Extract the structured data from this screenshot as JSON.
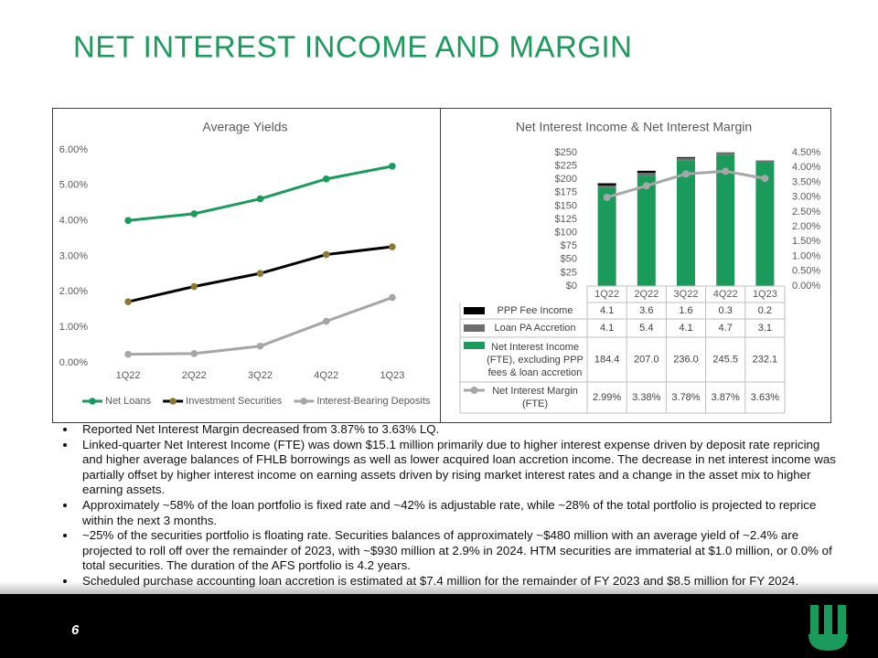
{
  "title": "NET INTEREST INCOME AND MARGIN",
  "chart_data": [
    {
      "type": "line",
      "title": "Average Yields",
      "categories": [
        "1Q22",
        "2Q22",
        "3Q22",
        "4Q22",
        "1Q23"
      ],
      "series": [
        {
          "name": "Net Loans",
          "color": "#1a9b5b",
          "values": [
            4.01,
            4.2,
            4.62,
            5.18,
            5.54
          ]
        },
        {
          "name": "Investment Securities",
          "color": "#000000",
          "marker_color": "#8c7a32",
          "values": [
            1.72,
            2.15,
            2.52,
            3.05,
            3.27
          ]
        },
        {
          "name": "Interest-Bearing Deposits",
          "color": "#a6a6a6",
          "values": [
            0.24,
            0.26,
            0.47,
            1.17,
            1.84
          ]
        }
      ],
      "ylim": [
        0,
        6
      ],
      "yticks": [
        {
          "value": 0,
          "label": "0.00%"
        },
        {
          "value": 1,
          "label": "1.00%"
        },
        {
          "value": 2,
          "label": "2.00%"
        },
        {
          "value": 3,
          "label": "3.00%"
        },
        {
          "value": 4,
          "label": "4.00%"
        },
        {
          "value": 5,
          "label": "5.00%"
        },
        {
          "value": 6,
          "label": "6.00%"
        }
      ],
      "legend": "bottom"
    },
    {
      "type": "bar",
      "title": "Net Interest Income & Net Interest Margin",
      "stacked": true,
      "categories": [
        "1Q22",
        "2Q22",
        "3Q22",
        "4Q22",
        "1Q23"
      ],
      "series": [
        {
          "name": "PPP Fee Income",
          "color": "#000000",
          "values": [
            4.1,
            3.6,
            1.6,
            0.3,
            0.2
          ]
        },
        {
          "name": "Loan PA Accretion",
          "color": "#6d6d6d",
          "values": [
            4.1,
            5.4,
            4.1,
            4.7,
            3.1
          ]
        },
        {
          "name": "Net Interest Income (FTE), excluding PPP fees & loan accretion",
          "color": "#1a9b5b",
          "values": [
            184.4,
            207.0,
            236.0,
            245.5,
            232.1
          ],
          "value_labels": [
            "184.4",
            "207.0",
            "236.0",
            "245.5",
            "232.1"
          ]
        },
        {
          "name": "Net Interest Margin (FTE)",
          "type": "line",
          "axis": "y2",
          "color": "#a6a6a6",
          "values": [
            2.99,
            3.38,
            3.78,
            3.87,
            3.63
          ],
          "value_labels": [
            "2.99%",
            "3.38%",
            "3.78%",
            "3.87%",
            "3.63%"
          ]
        }
      ],
      "ylim": [
        0,
        250
      ],
      "yticks": [
        {
          "value": 0,
          "label": "$0"
        },
        {
          "value": 25,
          "label": "$25"
        },
        {
          "value": 50,
          "label": "$50"
        },
        {
          "value": 75,
          "label": "$75"
        },
        {
          "value": 100,
          "label": "$100"
        },
        {
          "value": 125,
          "label": "$125"
        },
        {
          "value": 150,
          "label": "$150"
        },
        {
          "value": 175,
          "label": "$175"
        },
        {
          "value": 200,
          "label": "$200"
        },
        {
          "value": 225,
          "label": "$225"
        },
        {
          "value": 250,
          "label": "$250"
        }
      ],
      "y2lim": [
        0,
        4.5
      ],
      "y2ticks": [
        {
          "value": 0,
          "label": "0.00%"
        },
        {
          "value": 0.5,
          "label": "0.50%"
        },
        {
          "value": 1,
          "label": "1.00%"
        },
        {
          "value": 1.5,
          "label": "1.50%"
        },
        {
          "value": 2,
          "label": "2.00%"
        },
        {
          "value": 2.5,
          "label": "2.50%"
        },
        {
          "value": 3,
          "label": "3.00%"
        },
        {
          "value": 3.5,
          "label": "3.50%"
        },
        {
          "value": 4,
          "label": "4.00%"
        },
        {
          "value": 4.5,
          "label": "4.50%"
        }
      ],
      "legend": "data-table"
    }
  ],
  "bullets": [
    "Reported Net Interest Margin decreased from 3.87% to 3.63% LQ.",
    "Linked-quarter Net Interest Income (FTE) was down $15.1 million primarily due to higher interest expense driven by deposit rate repricing and higher average balances of FHLB borrowings as well as lower acquired loan accretion income. The decrease in net interest income was partially offset by higher interest income on earning assets driven by rising market interest rates and a change in the asset mix to higher earning assets.",
    "Approximately ~58% of the loan portfolio is fixed rate and ~42% is adjustable rate, while ~28% of the total portfolio is projected to reprice within the next 3 months.",
    "~25% of the securities portfolio is floating rate.  Securities balances of approximately ~$480 million with an average yield of ~2.4% are projected to roll off over the remainder of 2023, with ~$930 million at 2.9% in 2024. HTM securities are immaterial at $1.0 million, or 0.0% of total securities. The duration of the AFS portfolio is 4.2 years.",
    "Scheduled purchase accounting loan accretion is estimated at $7.4 million for the remainder of FY 2023 and $8.5 million for FY 2024."
  ],
  "page_number": "6"
}
